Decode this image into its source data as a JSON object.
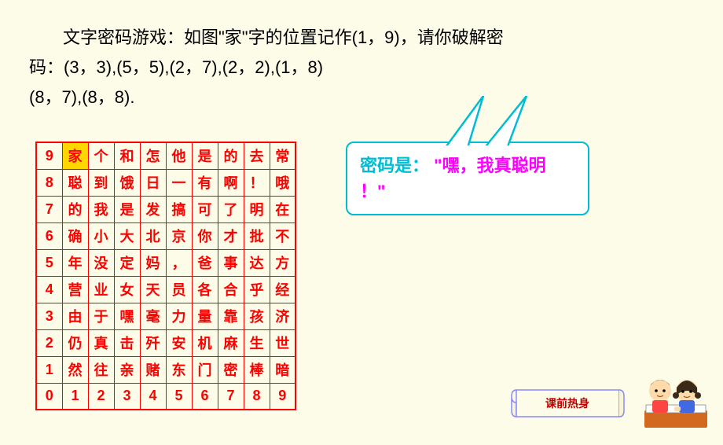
{
  "text": {
    "line1": "文字密码游戏：如图\"家\"字的位置记作(1，9)，请你破解密",
    "line2": "码：(3，3),(5，5),(2，7),(2，2),(1，8)",
    "line3": "(8，7),(8，8)."
  },
  "speech": {
    "label": "密码是：",
    "answer1": "\"嘿，我真聪明",
    "answer2": "！\""
  },
  "banner": {
    "label": "课前热身"
  },
  "grid": {
    "highlight": {
      "row": 0,
      "col": 1
    },
    "rows": [
      [
        "9",
        "家",
        "个",
        "和",
        "怎",
        "他",
        "是",
        "的",
        "去",
        "常"
      ],
      [
        "8",
        "聪",
        "到",
        "饿",
        "日",
        "一",
        "有",
        "啊",
        "！",
        "哦"
      ],
      [
        "7",
        "的",
        "我",
        "是",
        "发",
        "搞",
        "可",
        "了",
        "明",
        "在"
      ],
      [
        "6",
        "确",
        "小",
        "大",
        "北",
        "京",
        "你",
        "才",
        "批",
        "不"
      ],
      [
        "5",
        "年",
        "没",
        "定",
        "妈",
        "，",
        "爸",
        "事",
        "达",
        "方"
      ],
      [
        "4",
        "营",
        "业",
        "女",
        "天",
        "员",
        "各",
        "合",
        "乎",
        "经"
      ],
      [
        "3",
        "由",
        "于",
        "嘿",
        "毫",
        "力",
        "量",
        "靠",
        "孩",
        "济"
      ],
      [
        "2",
        "仍",
        "真",
        "击",
        "歼",
        "安",
        "机",
        "麻",
        "生",
        "世"
      ],
      [
        "1",
        "然",
        "往",
        "亲",
        "赌",
        "东",
        "门",
        "密",
        "棒",
        "暗"
      ],
      [
        "0",
        "1",
        "2",
        "3",
        "4",
        "5",
        "6",
        "7",
        "8",
        "9"
      ]
    ]
  },
  "style": {
    "bg": "#fdfce8",
    "grid_border": "#f00",
    "grid_text": "#f00",
    "highlight_bg": "#ffd700",
    "speech_border": "#00bcd4",
    "speech_text": "#ff00ff",
    "banner_text": "#c00000",
    "banner_fill": "#fdfce8",
    "banner_stroke": "#8888ff"
  }
}
